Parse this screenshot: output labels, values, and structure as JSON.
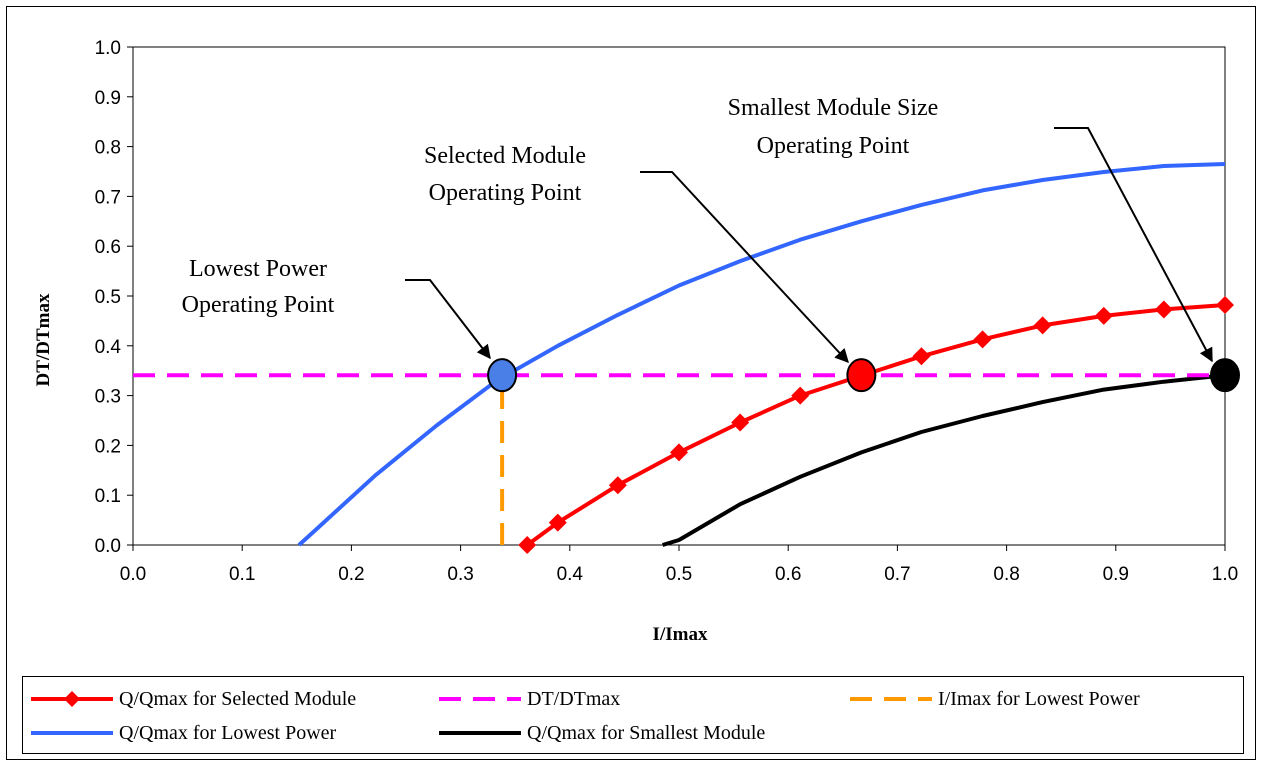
{
  "chart_data": {
    "type": "line",
    "title": "",
    "xlabel": "I/Imax",
    "ylabel": "DT/DTmax",
    "xlim": [
      0.0,
      1.0
    ],
    "ylim": [
      0.0,
      1.0
    ],
    "x_ticks": [
      "0.0",
      "0.1",
      "0.2",
      "0.3",
      "0.4",
      "0.5",
      "0.6",
      "0.7",
      "0.8",
      "0.9",
      "1.0"
    ],
    "y_ticks": [
      "0.0",
      "0.1",
      "0.2",
      "0.3",
      "0.4",
      "0.5",
      "0.6",
      "0.7",
      "0.8",
      "0.9",
      "1.0"
    ],
    "grid": false,
    "legend_position": "bottom",
    "series": [
      {
        "name": "Q/Qmax for Selected Module",
        "color": "#ff0000",
        "marker": "diamond",
        "x": [
          0.361,
          0.389,
          0.444,
          0.5,
          0.556,
          0.611,
          0.667,
          0.722,
          0.778,
          0.833,
          0.889,
          0.944,
          1.0
        ],
        "y": [
          0.0,
          0.045,
          0.12,
          0.186,
          0.246,
          0.3,
          0.34,
          0.379,
          0.413,
          0.441,
          0.46,
          0.473,
          0.482
        ]
      },
      {
        "name": "DT/DTmax",
        "color": "#ff00ff",
        "dash": "dashed",
        "x": [
          0.0,
          1.0
        ],
        "y": [
          0.341,
          0.341
        ]
      },
      {
        "name": "I/Imax for Lowest Power",
        "color": "#ff9900",
        "dash": "dashed",
        "x": [
          0.338,
          0.338
        ],
        "y": [
          0.0,
          0.341
        ]
      },
      {
        "name": "Q/Qmax for Lowest Power",
        "color": "#3366ff",
        "x": [
          0.152,
          0.167,
          0.222,
          0.278,
          0.333,
          0.389,
          0.444,
          0.5,
          0.556,
          0.611,
          0.667,
          0.722,
          0.778,
          0.833,
          0.889,
          0.944,
          1.0
        ],
        "y": [
          0.0,
          0.03,
          0.14,
          0.24,
          0.33,
          0.4,
          0.462,
          0.521,
          0.57,
          0.613,
          0.65,
          0.683,
          0.712,
          0.733,
          0.749,
          0.761,
          0.765
        ]
      },
      {
        "name": "Q/Qmax for Smallest Module",
        "color": "#000000",
        "x": [
          0.485,
          0.5,
          0.556,
          0.611,
          0.667,
          0.722,
          0.778,
          0.833,
          0.889,
          0.944,
          1.0
        ],
        "y": [
          0.0,
          0.01,
          0.082,
          0.137,
          0.186,
          0.227,
          0.259,
          0.287,
          0.312,
          0.328,
          0.341
        ]
      }
    ],
    "operating_points": [
      {
        "x": 0.338,
        "y": 0.341,
        "color": "#4a7fe8"
      },
      {
        "x": 0.667,
        "y": 0.341,
        "color": "#ff0000"
      },
      {
        "x": 1.0,
        "y": 0.341,
        "color": "#000000"
      }
    ],
    "annotations": [
      {
        "lines": [
          "Lowest Power",
          "Operating Point"
        ]
      },
      {
        "lines": [
          "Selected Module",
          "Operating Point"
        ]
      },
      {
        "lines": [
          "Smallest Module Size",
          "Operating Point"
        ]
      }
    ]
  }
}
